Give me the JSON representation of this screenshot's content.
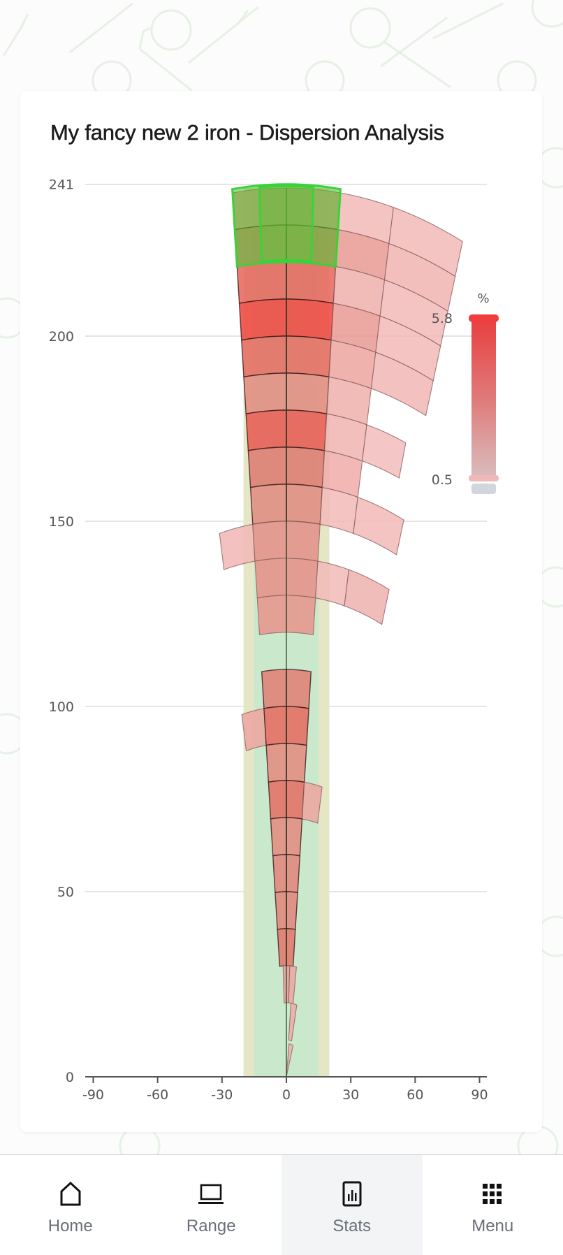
{
  "card": {
    "title": "My fancy new 2 iron - Dispersion Analysis"
  },
  "colors": {
    "low": "#f4c2c2",
    "mid": "#e07a6e",
    "high": "#f0423c",
    "target_outer": "#e4e6c6",
    "target_inner": "#c9e8cc",
    "highlight": "#3ad23a",
    "nav_active_bg": "#f2f4f5",
    "nav_label": "#6b6f78"
  },
  "legend": {
    "unit": "%",
    "max_label": "5.8",
    "min_label": "0.5"
  },
  "bottom_nav": {
    "items": [
      {
        "label": "Home",
        "icon": "home-icon",
        "active": false
      },
      {
        "label": "Range",
        "icon": "laptop-icon",
        "active": false
      },
      {
        "label": "Stats",
        "icon": "bar-chart-icon",
        "active": true
      },
      {
        "label": "Menu",
        "icon": "grid-menu-icon",
        "active": false
      }
    ]
  },
  "chart_data": {
    "type": "heatmap",
    "subtype": "polar-dispersion",
    "title": "My fancy new 2 iron - Dispersion Analysis",
    "xlabel": "",
    "ylabel": "",
    "x_ticks": [
      -90,
      -60,
      -30,
      0,
      30,
      60,
      90
    ],
    "y_ticks": [
      0,
      50,
      100,
      150,
      200,
      241
    ],
    "xlim": [
      -90,
      90
    ],
    "ylim": [
      0,
      241
    ],
    "grid": "horizontal",
    "colorbar": {
      "label": "%",
      "min": 0.5,
      "max": 5.8,
      "position": "right"
    },
    "target_corridor": {
      "outer_halfwidth": 20,
      "inner_halfwidth": 15
    },
    "highlight_region": {
      "r": [
        220,
        241
      ],
      "angle_deg": [
        -6,
        6
      ]
    },
    "cells": [
      {
        "r": [
          230,
          240
        ],
        "a": [
          -6,
          -3
        ],
        "v": 2.0
      },
      {
        "r": [
          230,
          240
        ],
        "a": [
          -3,
          0
        ],
        "v": 2.4
      },
      {
        "r": [
          230,
          240
        ],
        "a": [
          0,
          3
        ],
        "v": 2.4
      },
      {
        "r": [
          230,
          240
        ],
        "a": [
          3,
          6
        ],
        "v": 2.0
      },
      {
        "r": [
          230,
          240
        ],
        "a": [
          6,
          12
        ],
        "v": 0.8
      },
      {
        "r": [
          230,
          240
        ],
        "a": [
          12,
          20
        ],
        "v": 0.8
      },
      {
        "r": [
          220,
          230
        ],
        "a": [
          -6,
          -3
        ],
        "v": 3.2
      },
      {
        "r": [
          220,
          230
        ],
        "a": [
          -3,
          0
        ],
        "v": 3.0
      },
      {
        "r": [
          220,
          230
        ],
        "a": [
          0,
          3
        ],
        "v": 3.0
      },
      {
        "r": [
          220,
          230
        ],
        "a": [
          3,
          6
        ],
        "v": 3.2
      },
      {
        "r": [
          220,
          230
        ],
        "a": [
          6,
          12
        ],
        "v": 2.0
      },
      {
        "r": [
          220,
          230
        ],
        "a": [
          12,
          20
        ],
        "v": 1.0
      },
      {
        "r": [
          210,
          220
        ],
        "a": [
          -6,
          0
        ],
        "v": 4.2
      },
      {
        "r": [
          210,
          220
        ],
        "a": [
          0,
          6
        ],
        "v": 4.2
      },
      {
        "r": [
          210,
          220
        ],
        "a": [
          6,
          12
        ],
        "v": 1.2
      },
      {
        "r": [
          210,
          220
        ],
        "a": [
          12,
          20
        ],
        "v": 0.8
      },
      {
        "r": [
          200,
          210
        ],
        "a": [
          -6,
          0
        ],
        "v": 5.8
      },
      {
        "r": [
          200,
          210
        ],
        "a": [
          0,
          6
        ],
        "v": 5.8
      },
      {
        "r": [
          200,
          210
        ],
        "a": [
          6,
          12
        ],
        "v": 2.0
      },
      {
        "r": [
          200,
          210
        ],
        "a": [
          12,
          20
        ],
        "v": 0.8
      },
      {
        "r": [
          190,
          200
        ],
        "a": [
          -6,
          0
        ],
        "v": 4.0
      },
      {
        "r": [
          190,
          200
        ],
        "a": [
          0,
          6
        ],
        "v": 4.0
      },
      {
        "r": [
          190,
          200
        ],
        "a": [
          6,
          12
        ],
        "v": 1.6
      },
      {
        "r": [
          190,
          200
        ],
        "a": [
          12,
          20
        ],
        "v": 0.9
      },
      {
        "r": [
          180,
          190
        ],
        "a": [
          -6,
          0
        ],
        "v": 2.6
      },
      {
        "r": [
          180,
          190
        ],
        "a": [
          0,
          6
        ],
        "v": 2.6
      },
      {
        "r": [
          180,
          190
        ],
        "a": [
          6,
          12
        ],
        "v": 1.2
      },
      {
        "r": [
          170,
          180
        ],
        "a": [
          -6,
          0
        ],
        "v": 4.8
      },
      {
        "r": [
          170,
          180
        ],
        "a": [
          0,
          6
        ],
        "v": 4.8
      },
      {
        "r": [
          170,
          180
        ],
        "a": [
          6,
          12
        ],
        "v": 1.0
      },
      {
        "r": [
          170,
          180
        ],
        "a": [
          12,
          18
        ],
        "v": 0.7
      },
      {
        "r": [
          160,
          170
        ],
        "a": [
          -6,
          0
        ],
        "v": 3.2
      },
      {
        "r": [
          160,
          170
        ],
        "a": [
          0,
          6
        ],
        "v": 3.2
      },
      {
        "r": [
          160,
          170
        ],
        "a": [
          6,
          12
        ],
        "v": 1.3
      },
      {
        "r": [
          150,
          160
        ],
        "a": [
          -6,
          0
        ],
        "v": 2.6
      },
      {
        "r": [
          150,
          160
        ],
        "a": [
          0,
          6
        ],
        "v": 2.6
      },
      {
        "r": [
          150,
          160
        ],
        "a": [
          6,
          12
        ],
        "v": 0.8
      },
      {
        "r": [
          150,
          160
        ],
        "a": [
          12,
          20
        ],
        "v": 0.8
      },
      {
        "r": [
          140,
          150
        ],
        "a": [
          -12,
          -6
        ],
        "v": 0.9
      },
      {
        "r": [
          140,
          150
        ],
        "a": [
          -6,
          0
        ],
        "v": 2.4
      },
      {
        "r": [
          140,
          150
        ],
        "a": [
          0,
          6
        ],
        "v": 2.4
      },
      {
        "r": [
          130,
          140
        ],
        "a": [
          -6,
          0
        ],
        "v": 2.4
      },
      {
        "r": [
          130,
          140
        ],
        "a": [
          0,
          6
        ],
        "v": 2.4
      },
      {
        "r": [
          130,
          140
        ],
        "a": [
          6,
          12
        ],
        "v": 0.8
      },
      {
        "r": [
          130,
          140
        ],
        "a": [
          12,
          20
        ],
        "v": 1.1
      },
      {
        "r": [
          120,
          130
        ],
        "a": [
          -6,
          0
        ],
        "v": 2.2
      },
      {
        "r": [
          120,
          130
        ],
        "a": [
          0,
          6
        ],
        "v": 2.2
      },
      {
        "r": [
          100,
          110
        ],
        "a": [
          -6,
          0
        ],
        "v": 3.0
      },
      {
        "r": [
          100,
          110
        ],
        "a": [
          0,
          6
        ],
        "v": 3.0
      },
      {
        "r": [
          90,
          100
        ],
        "a": [
          -12,
          -6
        ],
        "v": 1.6
      },
      {
        "r": [
          90,
          100
        ],
        "a": [
          -6,
          0
        ],
        "v": 4.0
      },
      {
        "r": [
          90,
          100
        ],
        "a": [
          0,
          6
        ],
        "v": 4.0
      },
      {
        "r": [
          80,
          90
        ],
        "a": [
          -6,
          0
        ],
        "v": 2.6
      },
      {
        "r": [
          80,
          90
        ],
        "a": [
          0,
          6
        ],
        "v": 2.6
      },
      {
        "r": [
          70,
          80
        ],
        "a": [
          -6,
          0
        ],
        "v": 3.8
      },
      {
        "r": [
          70,
          80
        ],
        "a": [
          0,
          6
        ],
        "v": 3.8
      },
      {
        "r": [
          70,
          80
        ],
        "a": [
          6,
          12
        ],
        "v": 1.6
      },
      {
        "r": [
          60,
          70
        ],
        "a": [
          -6,
          0
        ],
        "v": 2.6
      },
      {
        "r": [
          60,
          70
        ],
        "a": [
          0,
          6
        ],
        "v": 2.6
      },
      {
        "r": [
          50,
          60
        ],
        "a": [
          -6,
          0
        ],
        "v": 2.8
      },
      {
        "r": [
          50,
          60
        ],
        "a": [
          0,
          6
        ],
        "v": 2.8
      },
      {
        "r": [
          40,
          50
        ],
        "a": [
          -6,
          0
        ],
        "v": 2.8
      },
      {
        "r": [
          40,
          50
        ],
        "a": [
          0,
          6
        ],
        "v": 2.8
      },
      {
        "r": [
          30,
          40
        ],
        "a": [
          -6,
          0
        ],
        "v": 3.4
      },
      {
        "r": [
          30,
          40
        ],
        "a": [
          0,
          6
        ],
        "v": 3.4
      },
      {
        "r": [
          20,
          30
        ],
        "a": [
          -3,
          3
        ],
        "v": 1.8
      },
      {
        "r": [
          20,
          30
        ],
        "a": [
          3,
          9
        ],
        "v": 1.6
      },
      {
        "r": [
          10,
          20
        ],
        "a": [
          6,
          14
        ],
        "v": 1.4
      },
      {
        "r": [
          0,
          9
        ],
        "a": [
          8,
          20
        ],
        "v": 1.2
      }
    ]
  }
}
